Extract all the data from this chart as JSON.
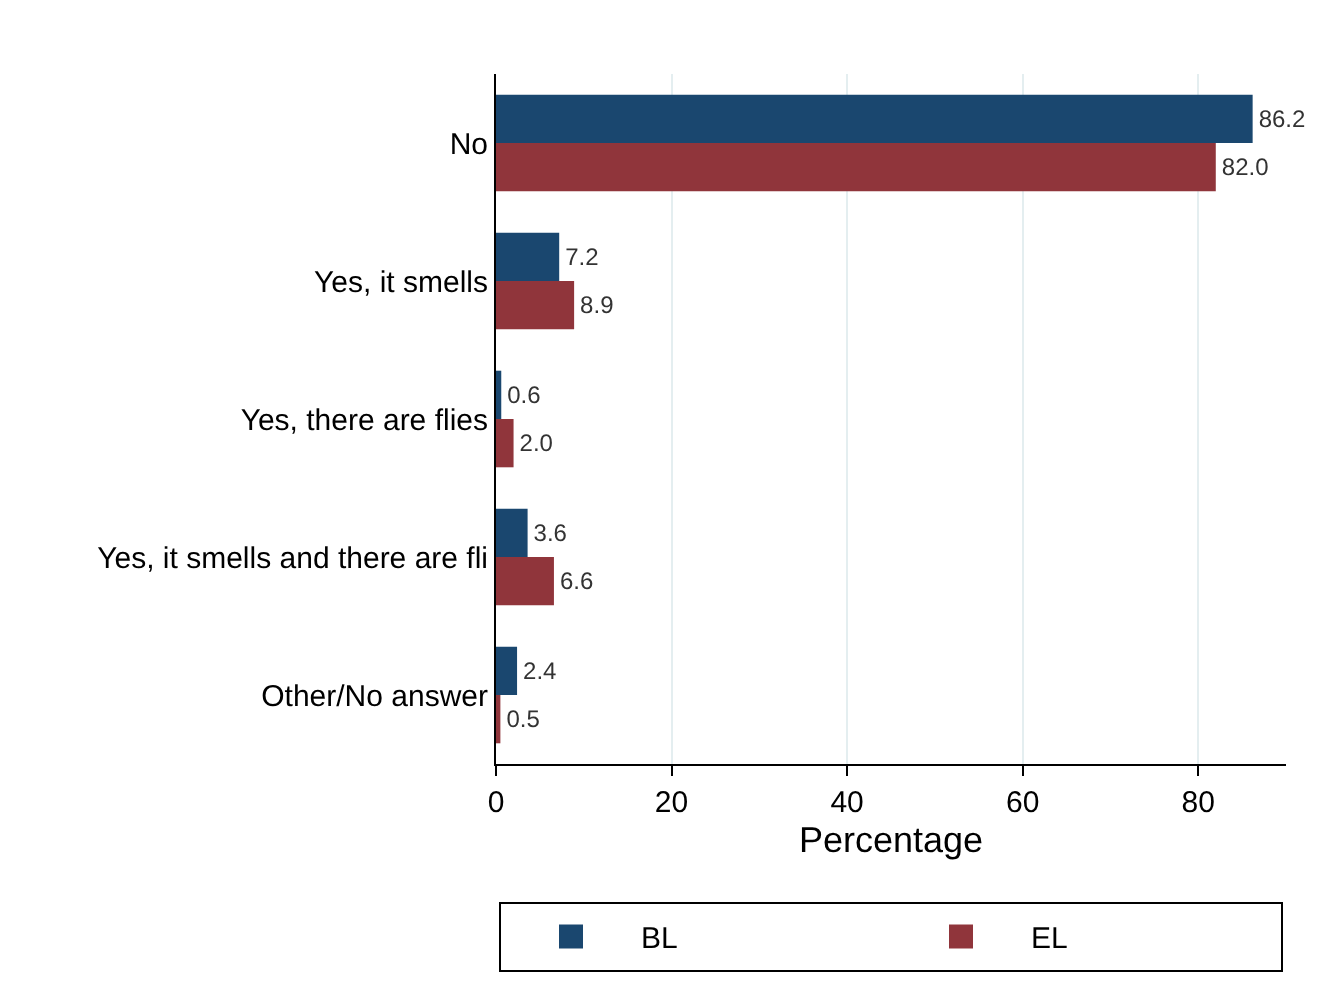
{
  "chart_data": {
    "type": "bar",
    "orientation": "horizontal",
    "xlabel": "Percentage",
    "categories": [
      "No",
      "Yes, it smells",
      "Yes, there are flies",
      "Yes, it smells and there are fli",
      "Other/No answer"
    ],
    "series": [
      {
        "name": "BL",
        "color": "#1a476f",
        "values": [
          86.2,
          7.2,
          0.6,
          3.6,
          2.4
        ],
        "value_labels": [
          "86.2",
          "7.2",
          "0.6",
          "3.6",
          "2.4"
        ]
      },
      {
        "name": "EL",
        "color": "#90353b",
        "values": [
          82.0,
          8.9,
          2.0,
          6.6,
          0.5
        ],
        "value_labels": [
          "82.0",
          "8.9",
          "2.0",
          "6.6",
          "0.5"
        ]
      }
    ],
    "xlim": [
      0,
      90
    ],
    "xticks": [
      0,
      20,
      40,
      60,
      80
    ],
    "grid": "x",
    "legend": "bottom"
  }
}
